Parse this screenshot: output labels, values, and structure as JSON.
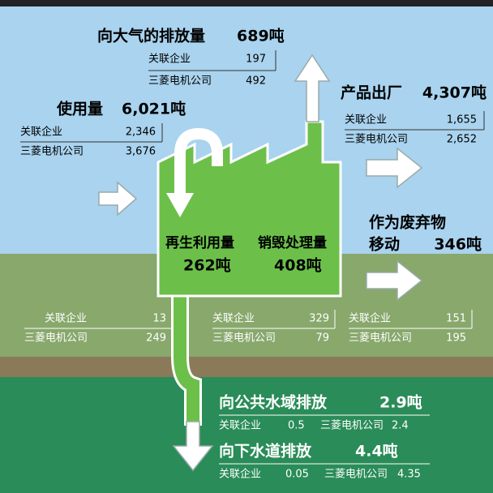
{
  "air": {
    "label": "向大气的排放量",
    "amount": "689吨",
    "rows": [
      [
        "关联企业",
        "197"
      ],
      [
        "三菱电机公司",
        "492"
      ]
    ]
  },
  "usage": {
    "label": "使用量",
    "amount": "6,021吨",
    "rows": [
      [
        "关联企业",
        "2,346"
      ],
      [
        "三菱电机公司",
        "3,676"
      ]
    ]
  },
  "product": {
    "label": "产品出厂",
    "amount": "4,307吨",
    "rows": [
      [
        "关联企业",
        "1,655"
      ],
      [
        "三菱电机公司",
        "2,652"
      ]
    ]
  },
  "waste": {
    "label": "作为废弃物",
    "label2": "移动",
    "amount": "346吨",
    "rows": [
      [
        "关联企业",
        "151"
      ],
      [
        "三菱电机公司",
        "195"
      ]
    ]
  },
  "recycle": {
    "label": "再生利用量",
    "amount": "262吨",
    "rows": [
      [
        "关联企业",
        "13"
      ],
      [
        "三菱电机公司",
        "249"
      ]
    ]
  },
  "destroy": {
    "label": "销毁处理量",
    "amount": "408吨",
    "rows": [
      [
        "关联企业",
        "329"
      ],
      [
        "三菱电机公司",
        "79"
      ]
    ]
  },
  "public_water": {
    "label": "向公共水域排放",
    "amount": "2.9吨",
    "rows": [
      [
        "关联企业",
        "0.5"
      ],
      [
        "三菱电机公司",
        "2.4"
      ]
    ]
  },
  "sewer": {
    "label": "向下水道排放",
    "amount": "4.4吨",
    "rows": [
      [
        "关联企业",
        "0.05"
      ],
      [
        "三菱电机公司",
        "4.35"
      ]
    ]
  }
}
